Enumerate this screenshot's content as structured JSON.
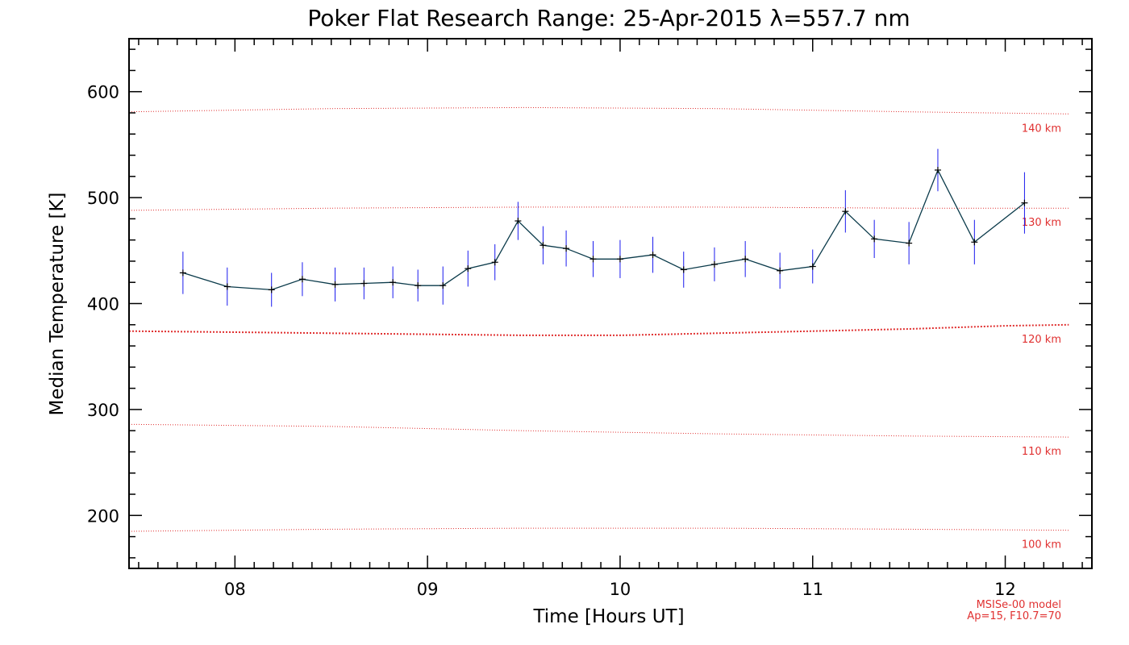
{
  "chart_data": {
    "type": "line",
    "title": "Poker Flat Research Range: 25-Apr-2015 λ=557.7 nm",
    "xlabel": "Time [Hours UT]",
    "ylabel": "Median Temperature [K]",
    "xlim": [
      7.45,
      12.45
    ],
    "ylim": [
      150,
      650
    ],
    "x_ticks": [
      {
        "value": 8,
        "label": "08"
      },
      {
        "value": 9,
        "label": "09"
      },
      {
        "value": 10,
        "label": "10"
      },
      {
        "value": 11,
        "label": "11"
      },
      {
        "value": 12,
        "label": "12"
      }
    ],
    "y_ticks": [
      {
        "value": 200,
        "label": "200"
      },
      {
        "value": 300,
        "label": "300"
      },
      {
        "value": 400,
        "label": "400"
      },
      {
        "value": 500,
        "label": "500"
      },
      {
        "value": 600,
        "label": "600"
      }
    ],
    "series": [
      {
        "color": "#0a3a4a",
        "marker": "plus",
        "error_color": "#1a1aee",
        "points": [
          {
            "x": 7.73,
            "y": 429,
            "err": 20
          },
          {
            "x": 7.96,
            "y": 416,
            "err": 18
          },
          {
            "x": 8.19,
            "y": 413,
            "err": 16
          },
          {
            "x": 8.35,
            "y": 423,
            "err": 16
          },
          {
            "x": 8.52,
            "y": 418,
            "err": 16
          },
          {
            "x": 8.67,
            "y": 419,
            "err": 15
          },
          {
            "x": 8.82,
            "y": 420,
            "err": 15
          },
          {
            "x": 8.95,
            "y": 417,
            "err": 15
          },
          {
            "x": 9.08,
            "y": 417,
            "err": 18
          },
          {
            "x": 9.21,
            "y": 433,
            "err": 17
          },
          {
            "x": 9.35,
            "y": 439,
            "err": 17
          },
          {
            "x": 9.47,
            "y": 478,
            "err": 18
          },
          {
            "x": 9.6,
            "y": 455,
            "err": 18
          },
          {
            "x": 9.72,
            "y": 452,
            "err": 17
          },
          {
            "x": 9.86,
            "y": 442,
            "err": 17
          },
          {
            "x": 10.0,
            "y": 442,
            "err": 18
          },
          {
            "x": 10.17,
            "y": 446,
            "err": 17
          },
          {
            "x": 10.33,
            "y": 432,
            "err": 17
          },
          {
            "x": 10.49,
            "y": 437,
            "err": 16
          },
          {
            "x": 10.65,
            "y": 442,
            "err": 17
          },
          {
            "x": 10.83,
            "y": 431,
            "err": 17
          },
          {
            "x": 11.0,
            "y": 435,
            "err": 16
          },
          {
            "x": 11.17,
            "y": 487,
            "err": 20
          },
          {
            "x": 11.32,
            "y": 461,
            "err": 18
          },
          {
            "x": 11.5,
            "y": 457,
            "err": 20
          },
          {
            "x": 11.65,
            "y": 526,
            "err": 20
          },
          {
            "x": 11.84,
            "y": 458,
            "err": 21
          },
          {
            "x": 12.1,
            "y": 495,
            "err": 29
          }
        ]
      }
    ],
    "reference_lines": [
      {
        "label": "140 km",
        "color": "#e03030",
        "points": [
          [
            7.45,
            581
          ],
          [
            8.5,
            584
          ],
          [
            9.5,
            585
          ],
          [
            10.5,
            584
          ],
          [
            11.5,
            581
          ],
          [
            12.33,
            579
          ]
        ]
      },
      {
        "label": "130 km",
        "color": "#e03030",
        "points": [
          [
            7.45,
            488
          ],
          [
            8.5,
            490
          ],
          [
            9.5,
            491
          ],
          [
            10.5,
            491
          ],
          [
            11.5,
            490
          ],
          [
            12.33,
            490
          ]
        ]
      },
      {
        "label": "120 km",
        "color": "#e03030",
        "points": [
          [
            7.45,
            374
          ],
          [
            8.0,
            373
          ],
          [
            8.5,
            372
          ],
          [
            9.0,
            371
          ],
          [
            9.5,
            370
          ],
          [
            10.0,
            370
          ],
          [
            10.5,
            372
          ],
          [
            11.0,
            374
          ],
          [
            11.5,
            376
          ],
          [
            12.0,
            379
          ],
          [
            12.33,
            380
          ]
        ]
      },
      {
        "label": "110 km",
        "color": "#e03030",
        "points": [
          [
            7.45,
            286
          ],
          [
            8.5,
            284
          ],
          [
            9.5,
            280
          ],
          [
            10.5,
            277
          ],
          [
            11.5,
            275
          ],
          [
            12.33,
            274
          ]
        ]
      },
      {
        "label": "100 km",
        "color": "#e03030",
        "points": [
          [
            7.45,
            185
          ],
          [
            8.5,
            187
          ],
          [
            9.5,
            188
          ],
          [
            10.5,
            188
          ],
          [
            11.5,
            187
          ],
          [
            12.33,
            186
          ]
        ]
      }
    ],
    "notes": [
      "MSISe-00 model",
      "Ap=15, F10.7=70"
    ],
    "grid": false
  }
}
